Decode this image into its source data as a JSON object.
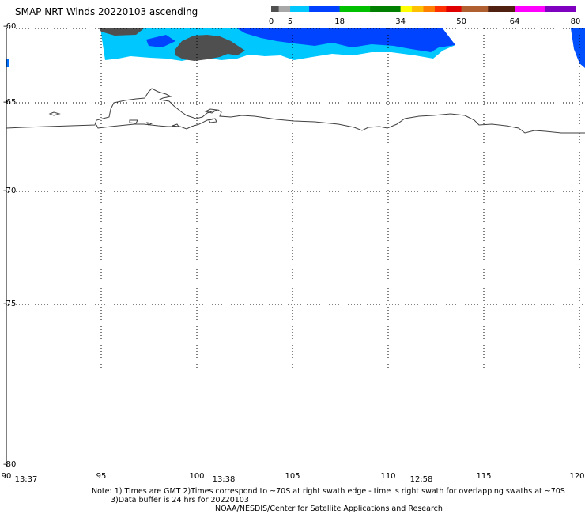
{
  "title": "SMAP NRT Winds 20220103 ascending",
  "colorbar": {
    "labels": [
      "0",
      "5",
      "18",
      "34",
      "50",
      "64",
      "80"
    ],
    "segments": [
      {
        "from": 0,
        "to": 2,
        "color": "#505050"
      },
      {
        "from": 2,
        "to": 5,
        "color": "#a8a8a8"
      },
      {
        "from": 5,
        "to": 10,
        "color": "#00c8ff"
      },
      {
        "from": 10,
        "to": 18,
        "color": "#0040ff"
      },
      {
        "from": 18,
        "to": 26,
        "color": "#00c000"
      },
      {
        "from": 26,
        "to": 34,
        "color": "#008000"
      },
      {
        "from": 34,
        "to": 37,
        "color": "#ffff00"
      },
      {
        "from": 37,
        "to": 40,
        "color": "#ffc000"
      },
      {
        "from": 40,
        "to": 43,
        "color": "#ff8000"
      },
      {
        "from": 43,
        "to": 46,
        "color": "#ff3000"
      },
      {
        "from": 46,
        "to": 50,
        "color": "#e00000"
      },
      {
        "from": 50,
        "to": 57,
        "color": "#b06030"
      },
      {
        "from": 57,
        "to": 64,
        "color": "#502010"
      },
      {
        "from": 64,
        "to": 72,
        "color": "#ff00ff"
      },
      {
        "from": 72,
        "to": 80,
        "color": "#8000c0"
      }
    ]
  },
  "latitude_labels": [
    "-60",
    "-65",
    "-70",
    "-75",
    "-80"
  ],
  "longitude_labels": [
    "90",
    "95",
    "100",
    "105",
    "110",
    "115",
    "120"
  ],
  "times": [
    "13:37",
    "13:38",
    "12:58"
  ],
  "notes": {
    "line1": "Note: 1) Times are GMT 2)Times correspond to ~70S at right swath edge - time is right swath for overlapping swaths at ~70S",
    "line2": "3)Data buffer is 24 hrs for 20220103",
    "line3": "NOAA/NESDIS/Center for Satellite Applications and Research"
  },
  "colors": {
    "wind_low": "#00c8ff",
    "wind_mid": "#0040ff",
    "wind_calm": "#505050",
    "coastline": "#404040",
    "grid": "#000000"
  }
}
